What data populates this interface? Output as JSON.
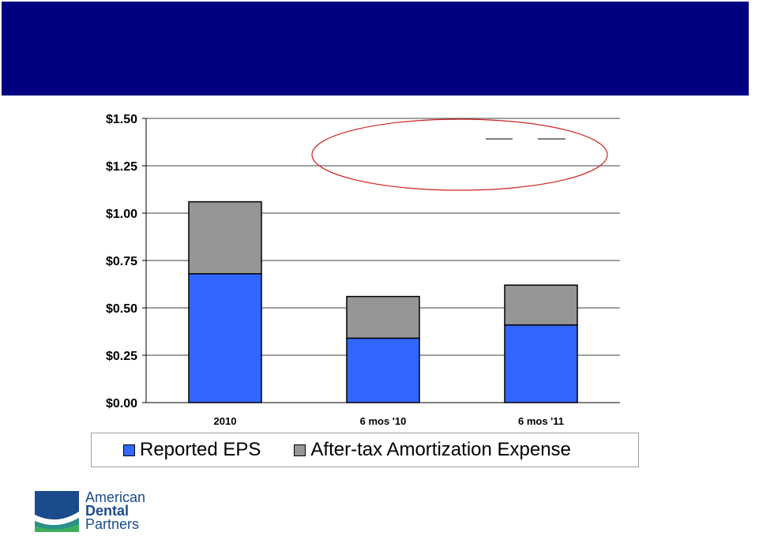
{
  "logo": {
    "line1": "American",
    "line2": "Dental",
    "line3": "Partners",
    "colors": {
      "navy": "#1b4b8c",
      "teal": "#2b8f8a",
      "green": "#3fae5a"
    }
  },
  "colors": {
    "header_band": "#000080",
    "annotation_ellipse": "#cc2222"
  },
  "chart_data": {
    "type": "bar",
    "stacked": true,
    "categories": [
      "2010",
      "6 mos '10",
      "6 mos '11"
    ],
    "series": [
      {
        "name": "Reported EPS",
        "values": [
          0.68,
          0.34,
          0.41
        ],
        "color": "#3366ff"
      },
      {
        "name": "After-tax Amortization Expense",
        "values": [
          0.38,
          0.22,
          0.21
        ],
        "color": "#969696"
      }
    ],
    "ylim": [
      0,
      1.5
    ],
    "yticks": [
      0,
      0.25,
      0.5,
      0.75,
      1.0,
      1.25,
      1.5
    ],
    "ytick_labels": [
      "$0.00",
      "$0.25",
      "$0.50",
      "$0.75",
      "$1.00",
      "$1.25",
      "$1.50"
    ],
    "grid": true,
    "legend_position": "bottom"
  }
}
